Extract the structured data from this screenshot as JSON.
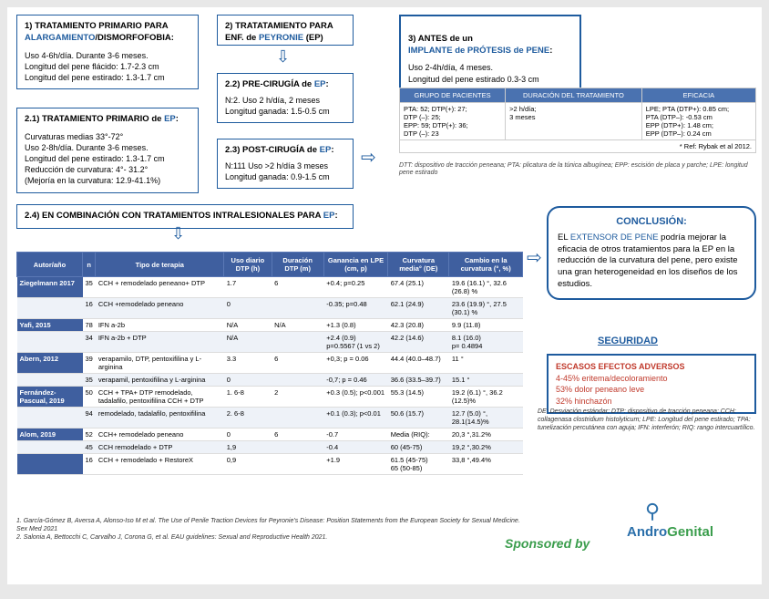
{
  "box1": {
    "title_pre": "1) TRATAMIENTO PRIMARIO PARA ",
    "title_hl": "ALARGAMIENTO",
    "title_post": "/DISMORFOFOBIA:",
    "l1": "Uso 4-6h/día. Durante 3-6 meses.",
    "l2": "Longitud del pene flácido: 1.7-2.3 cm",
    "l3": "Longitud del pene estirado: 1.3-1.7 cm"
  },
  "box2": {
    "title_pre": "2) TRATATAMIENTO PARA ENF. de ",
    "title_hl": "PEYRONIE",
    "title_post": " (EP)"
  },
  "box21": {
    "title_pre": "2.1) TRATAMIENTO PRIMARIO de ",
    "title_hl": "EP",
    "title_post": ":",
    "l1": "Curvaturas medias 33°-72°",
    "l2": "Uso 2-8h/día. Durante 3-6 meses.",
    "l3": "Longitud del pene estirado: 1.3-1.7 cm",
    "l4": "Reducción de curvatura: 4°- 31.2°",
    "l5": "(Mejoría en la curvatura: 12.9-41.1%)"
  },
  "box22": {
    "title_pre": "2.2) PRE-CIRUGÍA de ",
    "title_hl": "EP",
    "title_post": ":",
    "l1": "N:2. Uso 2 h/día, 2 meses",
    "l2": "Longitud ganada: 1.5-0.5 cm"
  },
  "box23": {
    "title_pre": "2.3) POST-CIRUGÍA de ",
    "title_hl": "EP",
    "title_post": ":",
    "l1": "N:111 Uso >2 h/día 3 meses",
    "l2": "Longitud ganada: 0.9-1.5 cm"
  },
  "box3": {
    "title_pre": "3) ANTES de un\n",
    "title_hl": "IMPLANTE de PRÓTESIS de PENE",
    "title_post": ":",
    "l1": "Uso 2-4h/día, 4 meses.",
    "l2": "Longitud del pene estirado 0.3-3 cm"
  },
  "box24": {
    "title_pre": "2.4) EN COMBINACIÓN CON TRATAMIENTOS INTRALESIONALES PARA ",
    "title_hl": "EP",
    "title_post": ":"
  },
  "effTable": {
    "headers": [
      "GRUPO DE PACIENTES",
      "DURACIÓN DEL TRATAMIENTO",
      "EFICACIA"
    ],
    "rows": [
      [
        "PTA: 52;  DTP(+): 27;\nDTP (–): 25;\nEPP: 59; DTP(+): 36;\nDTP (–): 23",
        ">2 h/día;\n3 meses",
        "LPE; PTA (DTP+): 0.85 cm;\nPTA (DTP–): -0.53 cm\nEPP (DTP+): 1.48 cm;\nEPP (DTP–): 0.24 cm"
      ]
    ],
    "ref": "* Ref: Rybak et al 2012.",
    "note": "DTT: dispositivo de tracción peneana; PTA: plicatura de la túnica albugínea; EPP: escisión de placa y parche; LPE: longitud pene estirado"
  },
  "mainTable": {
    "headers": [
      "Autor/año",
      "n",
      "Tipo de terapia",
      "Uso diario DTP (h)",
      "Duración DTP (m)",
      "Ganancia en LPE (cm, p)",
      "Curvatura media° (DE)",
      "Cambio en la curvatura (°, %)"
    ],
    "rows": [
      {
        "author": "Ziegelmann 2017",
        "n": "35",
        "tipo": "CCH + remodelado peneano+ DTP",
        "uso": "1.7",
        "dur": "6",
        "gan": "+0.4; p=0.25",
        "curv": "67.4 (25.1)",
        "camb": "19.6 (16.1) °, 32.6 (26.8) %"
      },
      {
        "author": "",
        "n": "16",
        "tipo": "CCH +remodelado peneano",
        "uso": "0",
        "dur": "",
        "gan": "-0.35; p=0.48",
        "curv": "62.1 (24.9)",
        "camb": "23.6 (19.9) °, 27.5 (30.1) %"
      },
      {
        "author": "Yafi, 2015",
        "n": "78",
        "tipo": "IFN a-2b",
        "uso": "N/A",
        "dur": "N/A",
        "gan": "+1.3 (0.8)",
        "curv": "42.3 (20.8)",
        "camb": "9.9 (11.8)"
      },
      {
        "author": "",
        "n": "34",
        "tipo": "IFN a-2b + DTP",
        "uso": "N/A",
        "dur": "",
        "gan": "+2.4 (0.9)\np=0.5567 (1 vs 2)",
        "curv": "42.2 (14.6)",
        "camb": "8.1 (16.0)\np= 0.4894"
      },
      {
        "author": "Abern, 2012",
        "n": "39",
        "tipo": "verapamilo, DTP, pentoxifilina y L-arginina",
        "uso": "3.3",
        "dur": "6",
        "gan": "+0,3; p = 0.06",
        "curv": "44.4 (40.0–48.7)",
        "camb": "11 °"
      },
      {
        "author": "",
        "n": "35",
        "tipo": "verapamil, pentoxifilina y L-arginina",
        "uso": "0",
        "dur": "",
        "gan": "-0,7; p = 0.46",
        "curv": "36.6 (33.5–39.7)",
        "camb": "15.1 °"
      },
      {
        "author": "Fernández-Pascual, 2019",
        "n": "50",
        "tipo": "CCH + TPA+ DTP remodelado, tadalafilo, pentoxifilina CCH + DTP",
        "uso": "1. 6-8",
        "dur": "2",
        "gan": "+0.3 (0.5); p<0.001",
        "curv": "55.3 (14.5)",
        "camb": "19.2 (6.1) °, 36.2 (12.5)%"
      },
      {
        "author": "",
        "n": "94",
        "tipo": "remodelado, tadalafilo, pentoxifilina",
        "uso": "2. 6-8",
        "dur": "",
        "gan": "+0.1 (0.3); p<0.01",
        "curv": "50.6 (15.7)",
        "camb": "12.7 (5.0) °, 28.1(14.5)%"
      },
      {
        "author": "Alom, 2019",
        "n": "52",
        "tipo": "CCH+ remodelado peneano",
        "uso": "0",
        "dur": "6",
        "gan": "-0.7",
        "curv": "Media (RIQ):",
        "camb": "20,3 °,31.2%"
      },
      {
        "author": "",
        "n": "45",
        "tipo": "CCH remodelado + DTP",
        "uso": "1,9",
        "dur": "",
        "gan": "-0.4",
        "curv": "60 (45-75)",
        "camb": "19,2 °,30.2%"
      },
      {
        "author": "",
        "n": "16",
        "tipo": "CCH + remodelado + RestoreX",
        "uso": "0,9",
        "dur": "",
        "gan": "+1.9",
        "curv": "61.5 (45-75)\n65 (50-85)",
        "camb": "33,8 °,49.4%"
      }
    ]
  },
  "conclusion": {
    "title": "CONCLUSIÓN:",
    "body_pre": "EL ",
    "body_hl": "EXTENSOR DE PENE",
    "body_post": " podría mejorar la eficacia de otros tratamientos para la EP en la reducción de la curvatura del pene, pero existe una gran heterogeneidad en los diseños de los estudios."
  },
  "seguridad": {
    "title": "SEGURIDAD",
    "head": "ESCASOS EFECTOS ADVERSOS",
    "l1": "4-45% eritema/decoloramiento",
    "l2": "53% dolor peneano leve",
    "l3": "32% hinchazón"
  },
  "abbr": "DE: Desviación estándar; DTP: dispositivo de tracción peneana; CCH: collagenasa clostridium histolyticum; LPE: Longitud del pene estirado; TPA: tunelización percutánea con aguja; IFN: interferón; RIQ: rango intercuartílico.",
  "refs": {
    "r1": "1. García-Gómez B, Aversa A, Alonso-Iso M et al. The Use of Penile Traction Devices for Peyronie's Disease: Position Statements from the European Society for Sexual Medicine. Sex Med 2021",
    "r2": "2. Salonia A, Bettocchi C, Carvalho J, Corona G, et al. EAU guidelines: Sexual and Reproductive Health 2021."
  },
  "sponsor": "Sponsored by",
  "logo": {
    "a": "Andro",
    "b": "Genital",
    "icon": "⚲"
  },
  "colors": {
    "blue": "#1e5b9e",
    "tableHeader": "#3f5f9f",
    "green": "#3a9d4c",
    "red": "#c0392b"
  }
}
